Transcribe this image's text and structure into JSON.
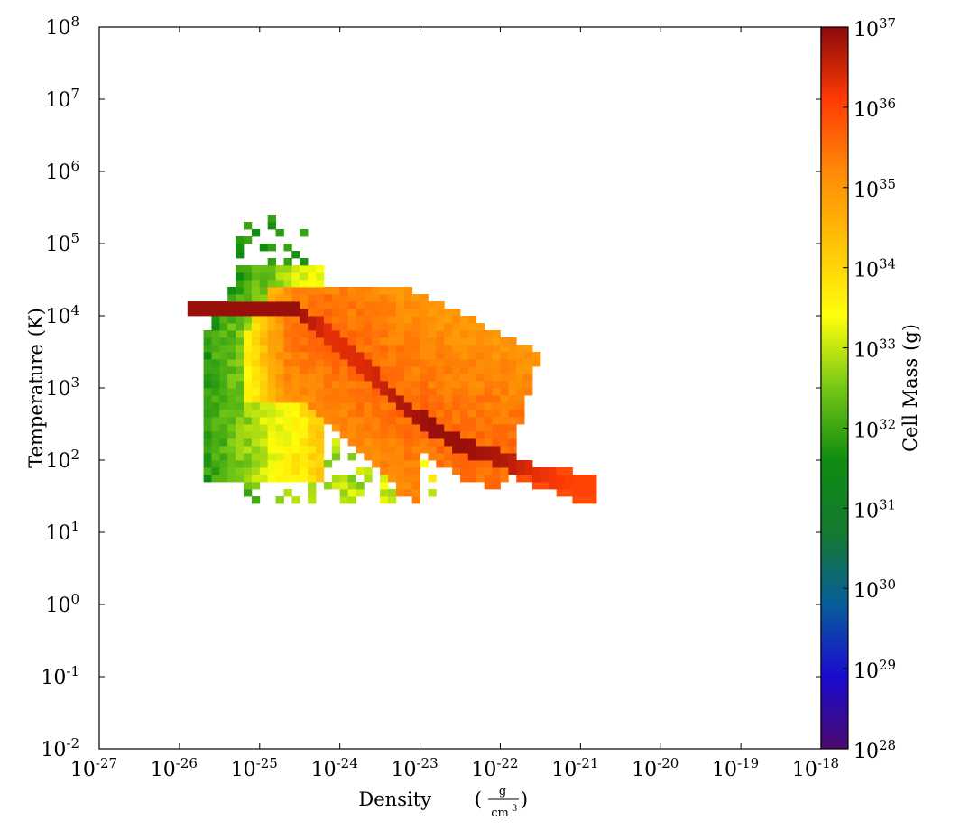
{
  "chart_data": {
    "type": "heatmap",
    "title": "",
    "xlabel": "Density",
    "xlabel_unit_num": "g",
    "xlabel_unit_den": "cm",
    "xlabel_unit_den_exp": "3",
    "ylabel": "Temperature",
    "ylabel_unit": "(K)",
    "colorbar_label": "Cell Mass",
    "colorbar_unit": "(g)",
    "x_scale": "log",
    "y_scale": "log",
    "color_scale": "log",
    "xlim": [
      1e-27,
      1e-18
    ],
    "ylim": [
      0.01,
      100000000
    ],
    "clim": [
      1e+28,
      1e+37
    ],
    "x_ticks": [
      {
        "base": "10",
        "exp": "-27"
      },
      {
        "base": "10",
        "exp": "-26"
      },
      {
        "base": "10",
        "exp": "-25"
      },
      {
        "base": "10",
        "exp": "-24"
      },
      {
        "base": "10",
        "exp": "-23"
      },
      {
        "base": "10",
        "exp": "-22"
      },
      {
        "base": "10",
        "exp": "-21"
      },
      {
        "base": "10",
        "exp": "-20"
      },
      {
        "base": "10",
        "exp": "-19"
      },
      {
        "base": "10",
        "exp": "-18"
      }
    ],
    "y_ticks": [
      {
        "base": "10",
        "exp": "-2"
      },
      {
        "base": "10",
        "exp": "-1"
      },
      {
        "base": "10",
        "exp": "0"
      },
      {
        "base": "10",
        "exp": "1"
      },
      {
        "base": "10",
        "exp": "2"
      },
      {
        "base": "10",
        "exp": "3"
      },
      {
        "base": "10",
        "exp": "4"
      },
      {
        "base": "10",
        "exp": "5"
      },
      {
        "base": "10",
        "exp": "6"
      },
      {
        "base": "10",
        "exp": "7"
      },
      {
        "base": "10",
        "exp": "8"
      }
    ],
    "colorbar_ticks": [
      {
        "base": "10",
        "exp": "28"
      },
      {
        "base": "10",
        "exp": "29"
      },
      {
        "base": "10",
        "exp": "30"
      },
      {
        "base": "10",
        "exp": "31"
      },
      {
        "base": "10",
        "exp": "32"
      },
      {
        "base": "10",
        "exp": "33"
      },
      {
        "base": "10",
        "exp": "34"
      },
      {
        "base": "10",
        "exp": "35"
      },
      {
        "base": "10",
        "exp": "36"
      },
      {
        "base": "10",
        "exp": "37"
      }
    ],
    "colormap": [
      "#4b0a6e",
      "#1a0bd0",
      "#075d9a",
      "#157a2f",
      "#0e8c10",
      "#76c716",
      "#ffff0a",
      "#ffc205",
      "#ff8a06",
      "#ff3a05",
      "#8c0a0a"
    ],
    "features": {
      "main_ridge": [
        {
          "log_density": -24.6,
          "log_temperature": 4.05,
          "log_mass": 36.9
        },
        {
          "log_density": -24.2,
          "log_temperature": 3.7,
          "log_mass": 36.3
        },
        {
          "log_density": -23.7,
          "log_temperature": 3.2,
          "log_mass": 36.4
        },
        {
          "log_density": -23.3,
          "log_temperature": 2.75,
          "log_mass": 36.7
        },
        {
          "log_density": -22.9,
          "log_temperature": 2.4,
          "log_mass": 36.9
        },
        {
          "log_density": -22.5,
          "log_temperature": 2.15,
          "log_mass": 36.9
        },
        {
          "log_density": -22.0,
          "log_temperature": 1.95,
          "log_mass": 36.7
        },
        {
          "log_density": -21.6,
          "log_temperature": 1.78,
          "log_mass": 36.3
        },
        {
          "log_density": -21.1,
          "log_temperature": 1.6,
          "log_mass": 36.0
        }
      ],
      "upper_boundary_log_temperature": 4.35,
      "min_log_temperature": 1.3,
      "max_log_temperature": 5.35,
      "min_log_density": -25.9,
      "max_log_density": -20.85
    }
  }
}
